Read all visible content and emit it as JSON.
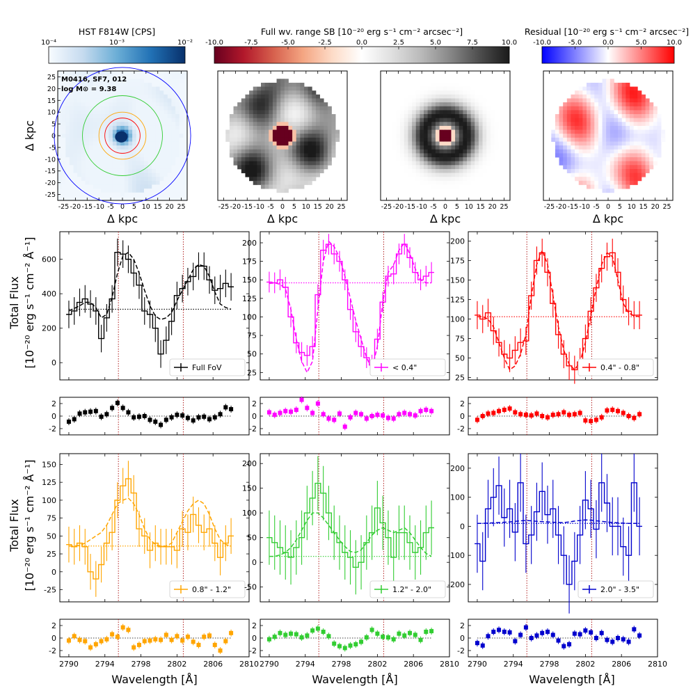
{
  "figure": {
    "colorbars": [
      {
        "label": "HST F814W [CPS]",
        "ticks": [
          "10⁻⁴",
          "10⁻³",
          "10⁻²"
        ],
        "cmap": [
          "#f7fbff",
          "#c6dbef",
          "#6baed6",
          "#2171b5",
          "#08306b"
        ]
      },
      {
        "label": "Full wv. range SB [10⁻²⁰ erg s⁻¹ cm⁻² arcsec⁻²]",
        "ticks": [
          "-10.0",
          "-7.5",
          "-5.0",
          "-2.5",
          "0.0",
          "2.5",
          "5.0",
          "7.5",
          "10.0"
        ],
        "cmap": [
          "#67001f",
          "#b2182b",
          "#d6604d",
          "#f4a582",
          "#fddbc7",
          "#ffffff",
          "#e0e0e0",
          "#bababa",
          "#878787",
          "#4d4d4d",
          "#1a1a1a"
        ]
      },
      {
        "label": "Residual [10⁻²⁰ erg s⁻¹ cm⁻² arcsec⁻²]",
        "ticks": [
          "-10.0",
          "-5.0",
          "0.0",
          "5.0",
          "10.0"
        ],
        "cmap": [
          "#0000ff",
          "#8080ff",
          "#ffffff",
          "#ff8080",
          "#ff0000"
        ]
      }
    ],
    "images": [
      {
        "id": "hst",
        "annotation": [
          "M0416, SF7, 012",
          "log M⊙ = 9.38"
        ],
        "xlabel": "Δ kpc",
        "ylabel": "Δ kpc"
      },
      {
        "id": "sb",
        "xlabel": "Δ kpc"
      },
      {
        "id": "model",
        "xlabel": "Δ kpc"
      },
      {
        "id": "resid",
        "xlabel": "Δ kpc"
      }
    ],
    "image_ticks": [
      "-25",
      "-20",
      "-15",
      "-10",
      "-5",
      "0",
      "5",
      "10",
      "15",
      "20",
      "25"
    ],
    "ring_colors": [
      "#ff0000",
      "#ffa500",
      "#32cd32",
      "#0000ff"
    ],
    "ylabel_line1": "Total Flux",
    "ylabel_line2": "[10⁻²⁰ erg s⁻¹ cm⁻² Å⁻¹]",
    "xlabel": "Wavelength [Å]",
    "xticks": [
      "2790",
      "2794",
      "2798",
      "2802",
      "2806",
      "2810"
    ]
  },
  "chart_data": [
    {
      "type": "line",
      "legend": "Full FoV",
      "color": "#000000",
      "xlim": [
        2789,
        2810
      ],
      "ylim": [
        -100,
        760
      ],
      "yticks": [
        0,
        200,
        400,
        600
      ],
      "continuum": 310,
      "vlines": [
        2795.5,
        2802.7
      ],
      "x": [
        2790.0,
        2790.6,
        2791.2,
        2791.8,
        2792.4,
        2793.0,
        2793.6,
        2794.2,
        2794.8,
        2795.4,
        2796.0,
        2796.6,
        2797.2,
        2797.8,
        2798.4,
        2799.0,
        2799.6,
        2800.2,
        2800.8,
        2801.4,
        2802.0,
        2802.6,
        2803.2,
        2803.8,
        2804.4,
        2805.0,
        2805.6,
        2806.2,
        2806.8,
        2807.4,
        2808.0
      ],
      "values": [
        280,
        300,
        350,
        370,
        340,
        300,
        140,
        260,
        370,
        640,
        630,
        600,
        520,
        450,
        300,
        280,
        200,
        50,
        130,
        240,
        390,
        430,
        470,
        500,
        560,
        560,
        480,
        420,
        430,
        460,
        440
      ],
      "model": [
        300,
        315,
        330,
        350,
        350,
        320,
        260,
        280,
        380,
        520,
        620,
        640,
        600,
        520,
        420,
        330,
        270,
        250,
        260,
        290,
        360,
        420,
        480,
        540,
        570,
        560,
        500,
        410,
        340,
        320,
        310
      ],
      "errors": [
        80,
        80,
        80,
        80,
        80,
        80,
        80,
        80,
        80,
        80,
        80,
        80,
        80,
        80,
        80,
        80,
        80,
        80,
        80,
        80,
        80,
        80,
        80,
        80,
        80,
        80,
        80,
        80,
        80,
        80,
        80
      ],
      "residuals": [
        -0.9,
        -0.5,
        0.4,
        0.6,
        0.7,
        0.8,
        -0.1,
        0.3,
        1.3,
        2.1,
        1.3,
        0.6,
        -0.2,
        -0.1,
        0.0,
        -0.6,
        -0.9,
        -1.4,
        -0.6,
        -0.2,
        0.2,
        0.1,
        -0.3,
        -0.7,
        -0.2,
        -0.1,
        -0.5,
        -0.2,
        0.3,
        1.4,
        1.1
      ]
    },
    {
      "type": "line",
      "legend": "< 0.4\"",
      "color": "#ff00ff",
      "xlim": [
        2789,
        2810
      ],
      "ylim": [
        15,
        215
      ],
      "yticks": [
        25,
        50,
        75,
        100,
        125,
        150,
        175,
        200
      ],
      "continuum": 146,
      "vlines": [
        2795.5,
        2802.7
      ],
      "x": [
        2790.0,
        2790.6,
        2791.2,
        2791.8,
        2792.4,
        2793.0,
        2793.6,
        2794.2,
        2794.8,
        2795.4,
        2796.0,
        2796.6,
        2797.2,
        2797.8,
        2798.4,
        2799.0,
        2799.6,
        2800.2,
        2800.8,
        2801.4,
        2802.0,
        2802.6,
        2803.2,
        2803.8,
        2804.4,
        2805.0,
        2805.6,
        2806.2,
        2806.8,
        2807.4,
        2808.0
      ],
      "values": [
        147,
        146,
        150,
        140,
        100,
        65,
        52,
        48,
        60,
        130,
        190,
        198,
        185,
        175,
        150,
        110,
        80,
        60,
        45,
        35,
        70,
        120,
        155,
        158,
        185,
        198,
        180,
        160,
        150,
        155,
        160
      ],
      "model": [
        145,
        146,
        144,
        138,
        110,
        70,
        40,
        25,
        40,
        110,
        175,
        202,
        195,
        180,
        155,
        125,
        95,
        70,
        45,
        30,
        60,
        120,
        160,
        170,
        190,
        200,
        185,
        165,
        150,
        146,
        146
      ],
      "errors": [
        14,
        14,
        14,
        14,
        14,
        14,
        14,
        14,
        14,
        14,
        14,
        14,
        14,
        14,
        14,
        14,
        14,
        14,
        14,
        14,
        14,
        14,
        14,
        14,
        14,
        14,
        14,
        14,
        14,
        14,
        14
      ],
      "residuals": [
        0.6,
        0.2,
        0.5,
        0.8,
        0.7,
        1.0,
        2.6,
        1.3,
        0.5,
        2.0,
        0.3,
        -0.4,
        -0.6,
        0.4,
        -1.7,
        -0.2,
        0.5,
        0.3,
        -0.4,
        0.0,
        0.2,
        0.1,
        -0.3,
        -0.4,
        0.3,
        0.5,
        0.3,
        0.1,
        0.8,
        1.0,
        0.8
      ]
    },
    {
      "type": "line",
      "legend": "0.4\" - 0.8\"",
      "color": "#ff0000",
      "xlim": [
        2789,
        2810
      ],
      "ylim": [
        22,
        212
      ],
      "yticks": [
        25,
        50,
        75,
        100,
        125,
        150,
        175,
        200
      ],
      "continuum": 103,
      "vlines": [
        2795.5,
        2802.7
      ],
      "x": [
        2790.0,
        2790.6,
        2791.2,
        2791.8,
        2792.4,
        2793.0,
        2793.6,
        2794.2,
        2794.8,
        2795.4,
        2796.0,
        2796.6,
        2797.2,
        2797.8,
        2798.4,
        2799.0,
        2799.6,
        2800.2,
        2800.8,
        2801.4,
        2802.0,
        2802.6,
        2803.2,
        2803.8,
        2804.4,
        2805.0,
        2805.6,
        2806.2,
        2806.8,
        2807.4,
        2808.0
      ],
      "values": [
        105,
        100,
        108,
        85,
        70,
        55,
        50,
        60,
        70,
        72,
        130,
        175,
        185,
        160,
        120,
        80,
        55,
        40,
        35,
        45,
        75,
        110,
        140,
        165,
        180,
        185,
        160,
        125,
        110,
        105,
        105
      ],
      "model": [
        103,
        103,
        100,
        90,
        70,
        50,
        35,
        40,
        55,
        80,
        130,
        170,
        188,
        170,
        130,
        90,
        60,
        42,
        35,
        45,
        70,
        105,
        140,
        170,
        185,
        180,
        150,
        120,
        108,
        104,
        103
      ],
      "errors": [
        18,
        18,
        18,
        18,
        18,
        18,
        18,
        18,
        18,
        18,
        18,
        18,
        18,
        18,
        18,
        18,
        18,
        18,
        18,
        18,
        18,
        18,
        18,
        18,
        18,
        18,
        18,
        18,
        18,
        18,
        18
      ],
      "residuals": [
        -0.6,
        0.0,
        0.4,
        0.5,
        0.8,
        1.0,
        1.2,
        0.6,
        0.3,
        0.2,
        0.1,
        0.4,
        0.0,
        -0.2,
        0.2,
        0.3,
        0.6,
        0.2,
        0.3,
        0.5,
        -0.7,
        -0.8,
        -0.6,
        -0.2,
        0.9,
        1.0,
        0.8,
        0.5,
        0.0,
        -0.3,
        0.3
      ]
    },
    {
      "type": "line",
      "legend": "0.8\" - 1.2\"",
      "color": "#ffa500",
      "xlim": [
        2789,
        2810
      ],
      "ylim": [
        -42,
        165
      ],
      "yticks": [
        -25,
        0,
        25,
        50,
        75,
        100,
        125,
        150
      ],
      "continuum": 36,
      "vlines": [
        2795.5,
        2802.7
      ],
      "x": [
        2790.0,
        2790.6,
        2791.2,
        2791.8,
        2792.4,
        2793.0,
        2793.6,
        2794.2,
        2794.8,
        2795.4,
        2796.0,
        2796.6,
        2797.2,
        2797.8,
        2798.4,
        2799.0,
        2799.6,
        2800.2,
        2800.8,
        2801.4,
        2802.0,
        2802.6,
        2803.2,
        2803.8,
        2804.4,
        2805.0,
        2805.6,
        2806.2,
        2806.8,
        2807.4,
        2808.0
      ],
      "values": [
        38,
        35,
        40,
        35,
        0,
        -10,
        10,
        40,
        55,
        100,
        120,
        130,
        110,
        60,
        50,
        30,
        40,
        35,
        35,
        35,
        30,
        60,
        55,
        80,
        65,
        55,
        60,
        40,
        20,
        40,
        50
      ],
      "model": [
        36,
        36,
        37,
        40,
        45,
        50,
        55,
        65,
        80,
        95,
        100,
        103,
        95,
        80,
        60,
        45,
        38,
        36,
        36,
        40,
        55,
        70,
        85,
        95,
        100,
        95,
        80,
        60,
        45,
        38,
        36
      ],
      "errors": [
        25,
        25,
        25,
        25,
        25,
        25,
        25,
        25,
        25,
        25,
        25,
        25,
        25,
        25,
        25,
        25,
        25,
        25,
        25,
        25,
        25,
        25,
        25,
        25,
        25,
        25,
        25,
        25,
        25,
        25,
        25
      ],
      "residuals": [
        -0.4,
        0.3,
        -0.3,
        -0.5,
        -1.5,
        -1.0,
        -0.5,
        -0.2,
        0.6,
        0.2,
        1.7,
        1.3,
        -1.5,
        -1.1,
        -0.5,
        -0.4,
        -0.2,
        -0.3,
        0.5,
        -0.3,
        0.3,
        -0.4,
        0.2,
        -0.6,
        -1.1,
        0.2,
        0.4,
        -1.1,
        -2.0,
        -0.5,
        0.8
      ]
    },
    {
      "type": "line",
      "legend": "1.2\" - 2.0\"",
      "color": "#32cd32",
      "xlim": [
        2789,
        2810
      ],
      "ylim": [
        -80,
        220
      ],
      "yticks": [
        -50,
        0,
        50,
        100,
        150,
        200
      ],
      "continuum": 12,
      "vlines": [
        2795.5,
        2802.7
      ],
      "x": [
        2790.0,
        2790.6,
        2791.2,
        2791.8,
        2792.4,
        2793.0,
        2793.6,
        2794.2,
        2794.8,
        2795.4,
        2796.0,
        2796.6,
        2797.2,
        2797.8,
        2798.4,
        2799.0,
        2799.6,
        2800.2,
        2800.8,
        2801.4,
        2802.0,
        2802.6,
        2803.2,
        2803.8,
        2804.4,
        2805.0,
        2805.6,
        2806.2,
        2806.8,
        2807.4,
        2808.0
      ],
      "values": [
        50,
        40,
        30,
        20,
        10,
        30,
        50,
        100,
        130,
        160,
        140,
        100,
        60,
        40,
        20,
        10,
        -10,
        0,
        40,
        60,
        110,
        80,
        50,
        10,
        60,
        60,
        40,
        20,
        30,
        60,
        70
      ],
      "model": [
        12,
        12,
        15,
        20,
        30,
        45,
        65,
        85,
        100,
        100,
        90,
        75,
        60,
        45,
        32,
        22,
        20,
        25,
        40,
        55,
        65,
        70,
        65,
        60,
        65,
        70,
        60,
        45,
        30,
        18,
        12
      ],
      "errors": [
        55,
        55,
        55,
        55,
        55,
        55,
        55,
        55,
        55,
        55,
        55,
        55,
        55,
        55,
        55,
        55,
        55,
        55,
        55,
        55,
        55,
        55,
        55,
        55,
        55,
        55,
        55,
        55,
        55,
        55,
        55
      ],
      "residuals": [
        -0.2,
        0.2,
        0.8,
        0.5,
        0.7,
        0.6,
        0.1,
        0.4,
        1.2,
        1.5,
        1.0,
        0.3,
        -0.9,
        -1.3,
        -1.6,
        -1.2,
        -1.0,
        -0.6,
        0.1,
        1.3,
        0.7,
        0.2,
        0.1,
        -0.2,
        0.7,
        0.4,
        0.8,
        0.5,
        -0.3,
        1.0,
        1.1
      ]
    },
    {
      "type": "line",
      "legend": "2.0\" - 3.5\"",
      "color": "#0000cd",
      "xlim": [
        2789,
        2810
      ],
      "ylim": [
        -260,
        250
      ],
      "yticks": [
        -200,
        -100,
        0,
        100,
        200
      ],
      "continuum": 10,
      "vlines": [
        2795.5,
        2802.7
      ],
      "x": [
        2790.0,
        2790.6,
        2791.2,
        2791.8,
        2792.4,
        2793.0,
        2793.6,
        2794.2,
        2794.8,
        2795.4,
        2796.0,
        2796.6,
        2797.2,
        2797.8,
        2798.4,
        2799.0,
        2799.6,
        2800.2,
        2800.8,
        2801.4,
        2802.0,
        2802.6,
        2803.2,
        2803.8,
        2804.4,
        2805.0,
        2805.6,
        2806.2,
        2806.8,
        2807.4,
        2808.0
      ],
      "values": [
        -60,
        -120,
        60,
        100,
        140,
        30,
        60,
        -20,
        150,
        -60,
        -30,
        50,
        120,
        40,
        60,
        -30,
        -100,
        -200,
        -120,
        -30,
        90,
        60,
        -10,
        150,
        80,
        0,
        0,
        -70,
        -100,
        150,
        0
      ],
      "model": [
        10,
        10,
        11,
        12,
        13,
        14,
        15,
        17,
        19,
        20,
        19,
        17,
        16,
        15,
        14,
        13,
        13,
        15,
        18,
        20,
        22,
        21,
        19,
        17,
        15,
        13,
        12,
        11,
        10,
        10,
        10
      ],
      "errors": [
        100,
        100,
        100,
        100,
        100,
        100,
        100,
        100,
        100,
        100,
        100,
        100,
        100,
        100,
        100,
        100,
        100,
        100,
        100,
        100,
        100,
        100,
        100,
        100,
        100,
        100,
        100,
        100,
        100,
        100,
        100
      ],
      "residuals": [
        -0.8,
        -1.2,
        0.3,
        1.0,
        1.3,
        1.0,
        0.9,
        -0.5,
        0.5,
        1.7,
        0.0,
        0.4,
        0.8,
        1.0,
        0.5,
        -0.4,
        -1.3,
        -1.0,
        0.7,
        0.6,
        1.2,
        0.9,
        0.0,
        0.8,
        -0.3,
        -0.6,
        0.0,
        -0.2,
        -0.6,
        1.4,
        0.4
      ]
    }
  ]
}
